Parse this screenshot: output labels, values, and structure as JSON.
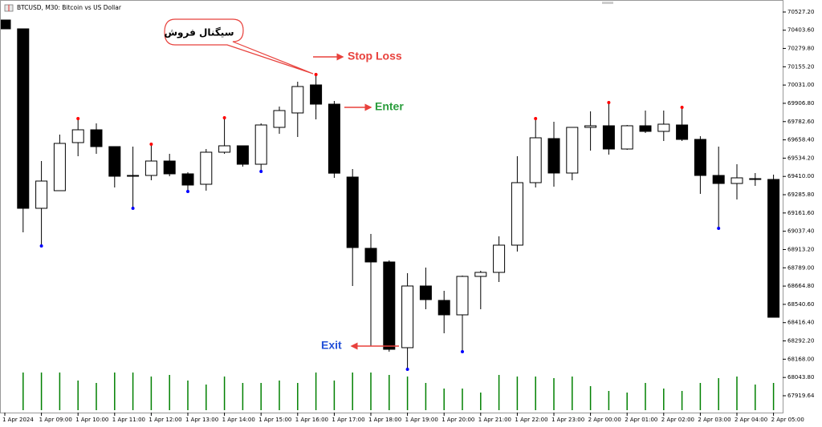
{
  "chart_data": {
    "type": "candlestick",
    "title": "BTCUSD, M30:  Bitcoin vs US Dollar",
    "categories": [
      "1 Apr 2024",
      null,
      "1 Apr 09:00",
      null,
      "1 Apr 10:00",
      null,
      "1 Apr 11:00",
      null,
      "1 Apr 12:00",
      null,
      "1 Apr 13:00",
      null,
      "1 Apr 14:00",
      null,
      "1 Apr 15:00",
      null,
      "1 Apr 16:00",
      null,
      "1 Apr 17:00",
      null,
      "1 Apr 18:00",
      null,
      "1 Apr 19:00",
      null,
      "1 Apr 20:00",
      null,
      "1 Apr 21:00",
      null,
      "1 Apr 22:00",
      null,
      "1 Apr 23:00",
      null,
      "2 Apr 00:00",
      null,
      "2 Apr 01:00",
      null,
      "2 Apr 02:00",
      null,
      "2 Apr 03:00",
      null,
      "2 Apr 04:00",
      null,
      "2 Apr 05:00"
    ],
    "open": [
      70472.8,
      70412.9,
      69193.4,
      69313.1,
      69639.8,
      69726.9,
      69612.6,
      69416.6,
      69416.6,
      69514.6,
      69427.5,
      69356.7,
      69574.5,
      69618.1,
      69492.8,
      69743.3,
      69841.3,
      70031.8,
      69901.1,
      69405.7,
      68921.3,
      68828.7,
      68246.2,
      68665.4,
      68567.4,
      68469.4,
      68730.7,
      68757.9,
      68943.0,
      69367.6,
      69667.1,
      69433.0,
      69743.3,
      69754.2,
      69596.3,
      69754.2,
      69716.1,
      69759.6,
      69661.6,
      69416.6,
      69362.1,
      69394.8,
      69389.4
    ],
    "high": [
      70472.8,
      70412.9,
      69514.6,
      69694.3,
      69803.2,
      69770.5,
      69612.6,
      69612.6,
      69628.9,
      69563.6,
      69438.4,
      69596.3,
      69808.6,
      69618.1,
      69770.5,
      69885.0,
      70053.6,
      70102.6,
      69922.9,
      69460.2,
      69019.3,
      68839.6,
      68752.5,
      68790.6,
      68632.7,
      68736.1,
      68768.8,
      69002.9,
      69547.3,
      69803.2,
      69781.4,
      69743.3,
      69852.1,
      69912.0,
      69759.6,
      69857.6,
      69857.6,
      69879.4,
      69683.4,
      69612.6,
      69492.8,
      69433.0,
      69422.1
    ],
    "low": [
      70412.9,
      69030.1,
      68937.6,
      69334.9,
      69547.3,
      69563.6,
      69334.9,
      69193.4,
      69383.9,
      69411.2,
      69307.7,
      69313.1,
      69563.6,
      69476.5,
      69443.9,
      69699.7,
      69678.0,
      69797.7,
      69400.3,
      68665.4,
      68257.1,
      68218.9,
      68099.2,
      68507.5,
      68344.2,
      68218.9,
      68507.5,
      68692.6,
      68899.5,
      69334.9,
      69340.4,
      69383.9,
      69585.4,
      69558.2,
      69590.8,
      69705.2,
      69650.7,
      69650.7,
      69291.4,
      69057.3,
      69253.3,
      69345.8,
      68453.0
    ],
    "close": [
      70412.9,
      69193.4,
      69378.5,
      69634.4,
      69726.9,
      69612.6,
      69411.2,
      69416.6,
      69514.6,
      69427.5,
      69351.3,
      69574.5,
      69618.1,
      69492.8,
      69759.6,
      69857.6,
      70020.9,
      69901.1,
      69432.0,
      68926.7,
      68828.7,
      68235.3,
      68665.4,
      68572.8,
      68469.4,
      68730.7,
      68757.9,
      68943.0,
      69367.6,
      69672.5,
      69433.0,
      69743.3,
      69754.2,
      69596.3,
      69754.2,
      69716.1,
      69765.0,
      69661.6,
      69416.6,
      69362.1,
      69400.3,
      69394.8,
      68453.0
    ],
    "volume": [
      null,
      47,
      47,
      47,
      37,
      34,
      47,
      47,
      42,
      44,
      37,
      32,
      42,
      34,
      34,
      37,
      34,
      47,
      37,
      47,
      47,
      44,
      42,
      34,
      27,
      27,
      22,
      44,
      42,
      42,
      40,
      42,
      30,
      24,
      22,
      34,
      27,
      24,
      34,
      40,
      42,
      32,
      34
    ],
    "fractals_up": [
      4,
      8,
      12,
      17,
      29,
      33,
      37
    ],
    "fractals_down": [
      2,
      7,
      10,
      14,
      22,
      25,
      39
    ],
    "up_color": "#ff0000",
    "down_color": "#0000ff",
    "volume_color": "#008000",
    "ylim": [
      67805.2,
      70592.5
    ],
    "yticks": [
      {
        "value": 70527.2,
        "label": "70527.20"
      },
      {
        "value": 70403.6,
        "label": "70403.60"
      },
      {
        "value": 70279.8,
        "label": "70279.80"
      },
      {
        "value": 70155.2,
        "label": "70155.20"
      },
      {
        "value": 70031,
        "label": "70031.00"
      },
      {
        "value": 69906.8,
        "label": "69906.80"
      },
      {
        "value": 69782.6,
        "label": "69782.60"
      },
      {
        "value": 69658.4,
        "label": "69658.40"
      },
      {
        "value": 69534.2,
        "label": "69534.20"
      },
      {
        "value": 69410,
        "label": "69410.00"
      },
      {
        "value": 69285.8,
        "label": "69285.80"
      },
      {
        "value": 69161.6,
        "label": "69161.60"
      },
      {
        "value": 69037.4,
        "label": "69037.40"
      },
      {
        "value": 68913.2,
        "label": "68913.20"
      },
      {
        "value": 68789,
        "label": "68789.00"
      },
      {
        "value": 68664.8,
        "label": "68664.80"
      },
      {
        "value": 68540.6,
        "label": "68540.60"
      },
      {
        "value": 68416.4,
        "label": "68416.40"
      },
      {
        "value": 68292.2,
        "label": "68292.20"
      },
      {
        "value": 68168,
        "label": "68168.00"
      },
      {
        "value": 68043.8,
        "label": "68043.80"
      },
      {
        "value": 67919.64,
        "label": "67919.64"
      }
    ],
    "annotations": {
      "signal": "سیگنال فروش",
      "stop_loss": "Stop Loss",
      "enter": "Enter",
      "exit": "Exit"
    }
  }
}
